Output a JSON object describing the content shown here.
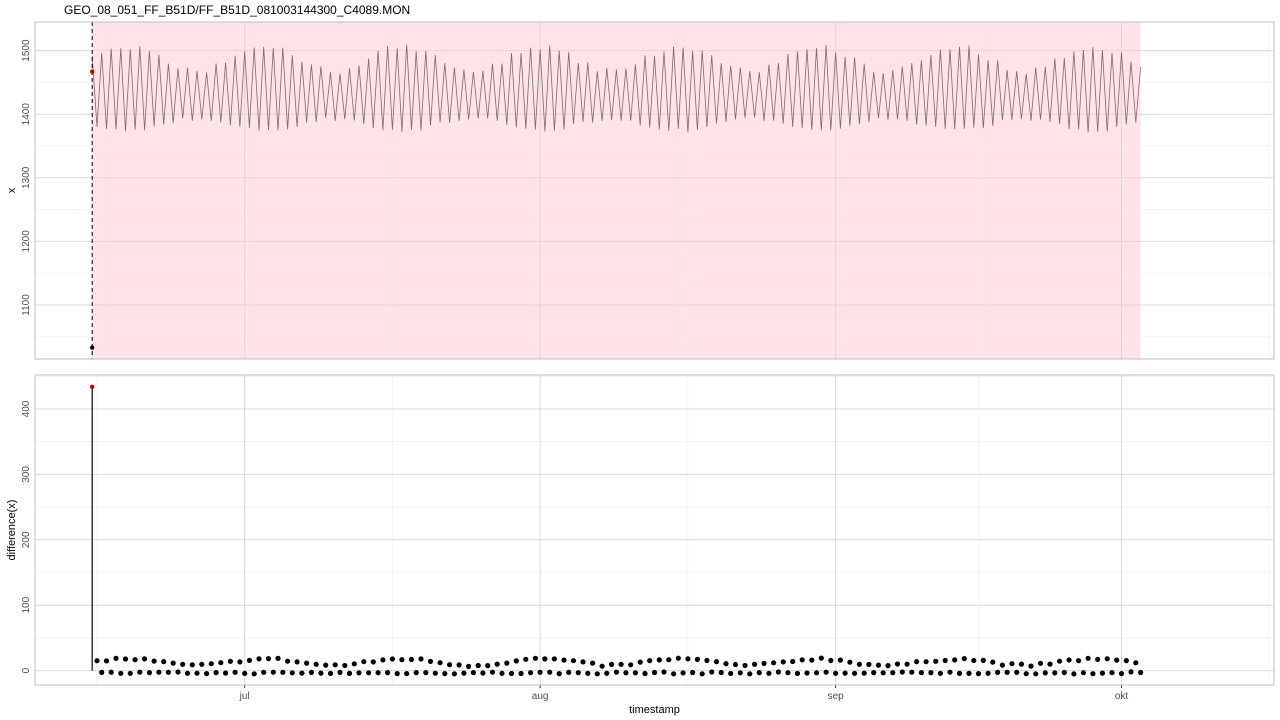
{
  "title": "GEO_08_051_FF_B51D/FF_B51D_081003144300_C4089.MON",
  "colors": {
    "panel_bg": "#ffffff",
    "panel_border": "#bfbfbf",
    "grid_major": "#d9d9d9",
    "grid_minor": "#ededed",
    "shade": "#ffe3e6",
    "series_top": "#7d6a6e",
    "series_bottom": "#000000",
    "highlight": "#cc0000"
  },
  "chart_data": [
    {
      "type": "line",
      "panel": "top",
      "xlabel": "",
      "ylabel": "x",
      "x_range": [
        "2008-06-09",
        "2008-10-17"
      ],
      "ylim": [
        1015,
        1545
      ],
      "yticks": [
        1100,
        1200,
        1300,
        1400,
        1500
      ],
      "xticks": [
        {
          "date": "2008-07-01",
          "label": "jul"
        },
        {
          "date": "2008-08-01",
          "label": "aug"
        },
        {
          "date": "2008-09-01",
          "label": "sep"
        },
        {
          "date": "2008-10-01",
          "label": "okt"
        }
      ],
      "grid": true,
      "shaded_region": {
        "start": "2008-06-15",
        "end": "2008-10-03"
      },
      "vline": {
        "date": "2008-06-15",
        "style": "dashed"
      },
      "series": [
        {
          "start": "2008-06-15",
          "end": "2008-10-03",
          "interval_hours": 12,
          "low_range": [
            1358,
            1395
          ],
          "high_range": [
            1450,
            1515
          ],
          "first_value": 1033,
          "first_value_highlight": 1467
        }
      ]
    },
    {
      "type": "scatter",
      "panel": "bottom",
      "xlabel": "timestamp",
      "ylabel": "difference(x)",
      "x_range": [
        "2008-06-09",
        "2008-10-17"
      ],
      "ylim": [
        -22,
        452
      ],
      "yticks": [
        0,
        100,
        200,
        300,
        400
      ],
      "xticks": [
        {
          "date": "2008-07-01",
          "label": "jul"
        },
        {
          "date": "2008-08-01",
          "label": "aug"
        },
        {
          "date": "2008-09-01",
          "label": "sep"
        },
        {
          "date": "2008-10-01",
          "label": "okt"
        }
      ],
      "grid": true,
      "series": [
        {
          "start": "2008-06-15",
          "end": "2008-10-03",
          "interval_hours": 12,
          "spike_value": 434,
          "range": [
            -5,
            20
          ]
        }
      ]
    }
  ]
}
